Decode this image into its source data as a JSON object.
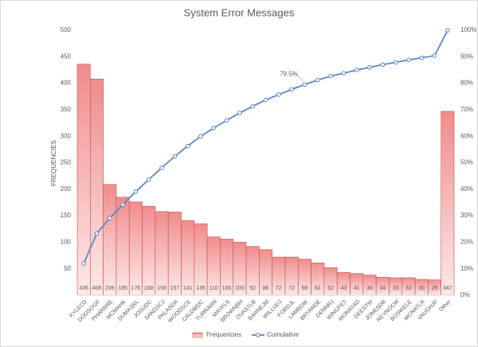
{
  "chart_data": {
    "type": "bar",
    "title": "System Error Messages",
    "y_label": "FREQUENCIES",
    "categories": [
      "KYLECD",
      "DODSOGP",
      "PHARRRE",
      "MCMAHK",
      "DUMASRL",
      "JOSUDC",
      "SANDSCJ",
      "PALASDA",
      "WOODSCE",
      "CALDWDC",
      "TURNARN",
      "MAYFLS",
      "BROWNBH",
      "OVASTLB",
      "BARNEJM",
      "WILLUDJ",
      "FORDJL",
      "LAMBDW",
      "BRYANDE",
      "DENNRJ",
      "WINGFET",
      "MONAYAD",
      "DEESTW",
      "JONESDB",
      "REYNOCM",
      "BOSWELE",
      "MCNATLR",
      "VAUGHJP",
      "Other"
    ],
    "series": [
      {
        "name": "Frequencies",
        "type": "bar",
        "color": "#f4a3a3",
        "values": [
          436,
          408,
          209,
          185,
          176,
          168,
          158,
          157,
          141,
          135,
          110,
          106,
          100,
          92,
          86,
          72,
          72,
          68,
          61,
          52,
          43,
          41,
          38,
          34,
          33,
          33,
          30,
          29,
          347
        ]
      },
      {
        "name": "Cumulative",
        "type": "line",
        "axis": "y2",
        "color": "#5b87c0",
        "values": [
          12.0,
          23.3,
          29.1,
          34.2,
          39.1,
          43.7,
          48.1,
          52.4,
          56.3,
          60.0,
          63.1,
          66.0,
          68.8,
          71.3,
          73.7,
          75.7,
          77.7,
          79.5,
          81.2,
          82.7,
          83.8,
          85.0,
          86.0,
          87.0,
          87.9,
          88.8,
          89.6,
          90.4,
          100
        ],
        "value_labels": [
          null,
          null,
          null,
          null,
          null,
          null,
          null,
          null,
          null,
          null,
          null,
          null,
          null,
          null,
          null,
          null,
          null,
          "79.5%",
          null,
          null,
          null,
          null,
          null,
          null,
          null,
          null,
          null,
          null,
          null
        ]
      }
    ],
    "ylim": [
      0,
      500
    ],
    "yticks": [
      50,
      100,
      150,
      200,
      250,
      300,
      350,
      400,
      450,
      500
    ],
    "y2lim": [
      0,
      100
    ],
    "y2ticks": [
      {
        "value": 0,
        "label": "0%"
      },
      {
        "value": 10,
        "label": "10%"
      },
      {
        "value": 20,
        "label": "20%"
      },
      {
        "value": 30,
        "label": "30%"
      },
      {
        "value": 40,
        "label": "40%"
      },
      {
        "value": 50,
        "label": "50%"
      },
      {
        "value": 60,
        "label": "60%"
      },
      {
        "value": 70,
        "label": "70%"
      },
      {
        "value": 80,
        "label": "80%"
      },
      {
        "value": 90,
        "label": "90%"
      },
      {
        "value": 100,
        "label": "100%"
      }
    ],
    "legend": "bottom"
  }
}
